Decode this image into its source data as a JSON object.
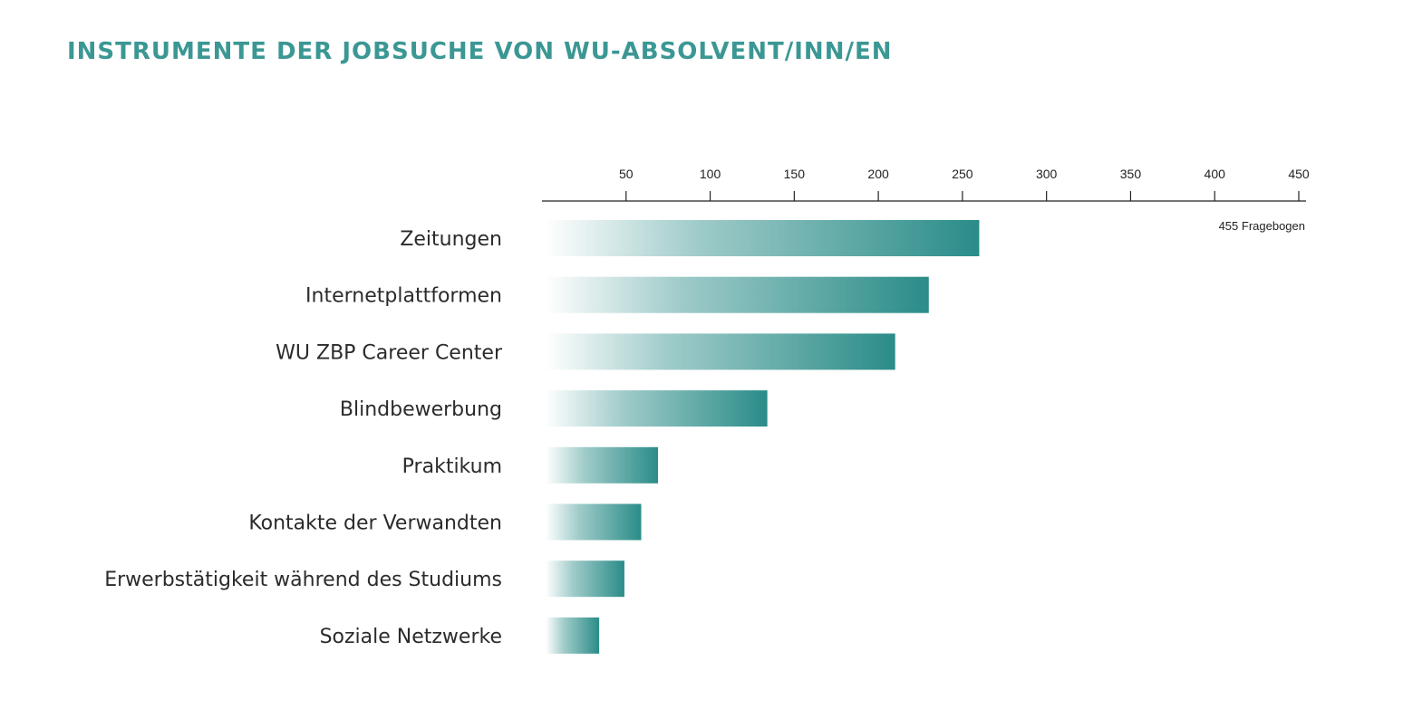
{
  "chart_data": {
    "type": "bar",
    "orientation": "horizontal",
    "title": "INSTRUMENTE DER JOBSUCHE VON WU-ABSOLVENT/INN/EN",
    "note": "455 Fragebogen",
    "xlim": [
      0,
      450
    ],
    "ticks": [
      50,
      100,
      150,
      200,
      250,
      300,
      350,
      400,
      450
    ],
    "categories": [
      "Zeitungen",
      "Internetplattformen",
      "WU ZBP Career Center",
      "Blindbewerbung",
      "Praktikum",
      "Kontakte der Verwandten",
      "Erwerbstätigkeit während des Studiums",
      "Soziale Netzwerke"
    ],
    "values": [
      260,
      230,
      210,
      134,
      69,
      59,
      49,
      34
    ],
    "color": "#2a8c88"
  }
}
